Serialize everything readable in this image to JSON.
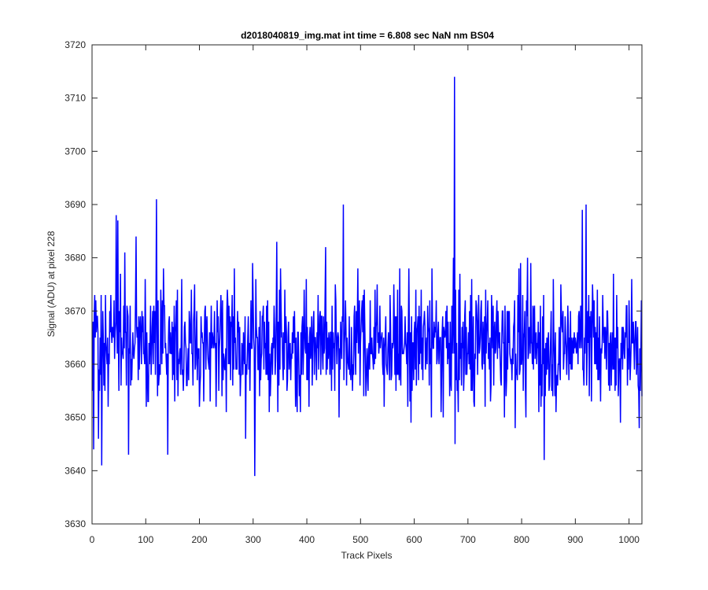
{
  "chart_data": {
    "type": "line",
    "title": "d2018040819_img.mat int time = 6.808 sec  NaN nm BS04",
    "xlabel": "Track Pixels",
    "ylabel": "Signal (ADU) at pixel 228",
    "xlim": [
      0,
      1024
    ],
    "ylim": [
      3630,
      3720
    ],
    "xticks": [
      0,
      100,
      200,
      300,
      400,
      500,
      600,
      700,
      800,
      900,
      1000
    ],
    "yticks": [
      3630,
      3640,
      3650,
      3660,
      3670,
      3680,
      3690,
      3700,
      3710,
      3720
    ],
    "grid": false,
    "legend": "none",
    "series_color": "#0000ff",
    "series": [
      {
        "x_start": 1,
        "x_step": 1,
        "count": 1024,
        "mean": 3664,
        "typical_range": [
          3648,
          3680
        ],
        "features": [
          {
            "x": 3,
            "y": 3644
          },
          {
            "x": 12,
            "y": 3646
          },
          {
            "x": 18,
            "y": 3641
          },
          {
            "x": 45,
            "y": 3688
          },
          {
            "x": 48,
            "y": 3687
          },
          {
            "x": 68,
            "y": 3643
          },
          {
            "x": 82,
            "y": 3684
          },
          {
            "x": 120,
            "y": 3691
          },
          {
            "x": 141,
            "y": 3643
          },
          {
            "x": 303,
            "y": 3639
          },
          {
            "x": 344,
            "y": 3683
          },
          {
            "x": 468,
            "y": 3690
          },
          {
            "x": 632,
            "y": 3650
          },
          {
            "x": 675,
            "y": 3714
          },
          {
            "x": 676,
            "y": 3645
          },
          {
            "x": 842,
            "y": 3642
          },
          {
            "x": 913,
            "y": 3689
          },
          {
            "x": 920,
            "y": 3690
          },
          {
            "x": 1019,
            "y": 3648
          }
        ]
      }
    ]
  }
}
